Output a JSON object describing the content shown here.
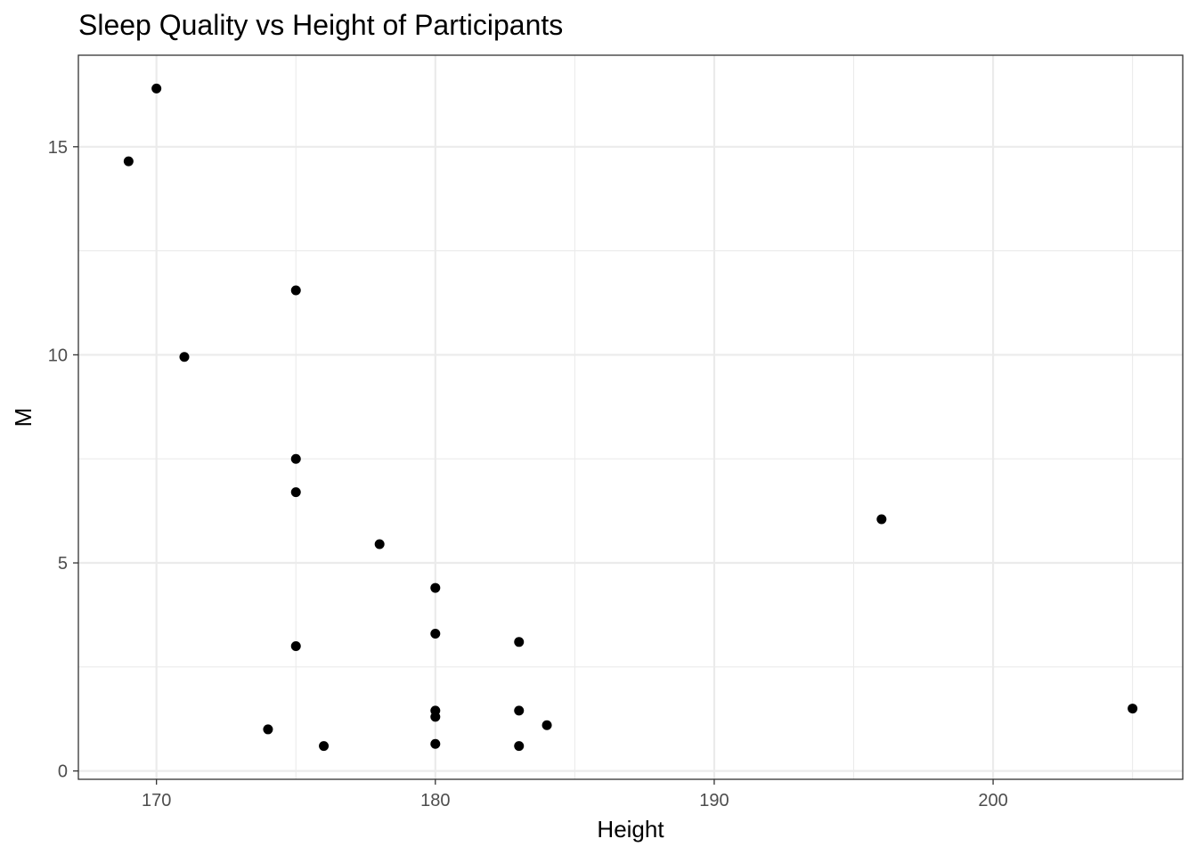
{
  "chart_data": {
    "type": "scatter",
    "title": "Sleep Quality vs Height of Participants",
    "xlabel": "Height",
    "ylabel": "M",
    "xlim": [
      167.2,
      206.8
    ],
    "ylim": [
      -0.2,
      17.2
    ],
    "x_ticks": [
      170,
      180,
      190,
      200
    ],
    "x_minor_ticks": [
      175,
      185,
      195,
      205
    ],
    "y_ticks": [
      0,
      5,
      10,
      15
    ],
    "y_minor_ticks": [
      2.5,
      7.5,
      12.5
    ],
    "grid": true,
    "legend": "none",
    "colors": {
      "point": "#000000",
      "grid": "#ebebeb",
      "panel_border": "#333333",
      "tick_text": "#4d4d4d"
    },
    "series": [
      {
        "x": [
          170,
          169,
          175,
          171,
          175,
          175,
          178,
          196,
          180,
          180,
          175,
          183,
          180,
          183,
          180,
          184,
          174,
          180,
          176,
          183,
          205
        ],
        "y": [
          16.4,
          14.65,
          11.55,
          9.95,
          7.5,
          6.7,
          5.45,
          6.05,
          4.4,
          3.3,
          3.0,
          3.1,
          1.45,
          1.45,
          1.3,
          1.1,
          1.0,
          0.65,
          0.6,
          0.6,
          1.5
        ]
      }
    ]
  }
}
